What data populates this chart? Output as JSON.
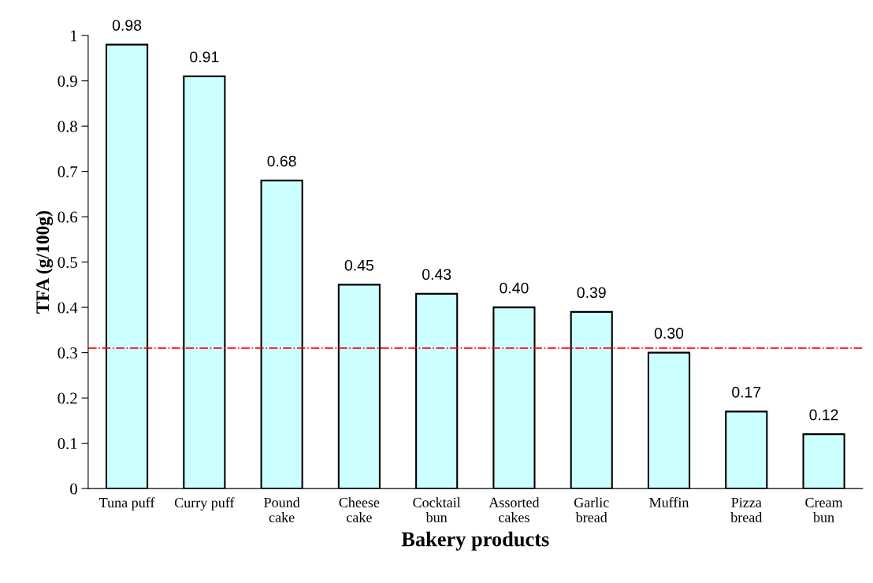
{
  "chart_data": {
    "type": "bar",
    "xlabel": "Bakery products",
    "ylabel": "TFA (g/100g)",
    "categories": [
      "Tuna puff",
      "Curry puff",
      "Pound\ncake",
      "Cheese\ncake",
      "Cocktail\nbun",
      "Assorted\ncakes",
      "Garlic\nbread",
      "Muffin",
      "Pizza\nbread",
      "Cream\nbun"
    ],
    "values": [
      0.98,
      0.91,
      0.68,
      0.45,
      0.43,
      0.4,
      0.39,
      0.3,
      0.17,
      0.12
    ],
    "value_labels": [
      "0.98",
      "0.91",
      "0.68",
      "0.45",
      "0.43",
      "0.40",
      "0.39",
      "0.30",
      "0.17",
      "0.12"
    ],
    "color": "#ccffff",
    "ylim": [
      0,
      1
    ],
    "yticks": [
      0,
      0.1,
      0.2,
      0.3,
      0.4,
      0.5,
      0.6,
      0.7,
      0.8,
      0.9,
      1
    ],
    "ref_lines": [
      {
        "axis": "y",
        "value": 0.31,
        "color": "#ff0000",
        "line_style": "dashdot"
      }
    ],
    "grid": false,
    "legend": false
  }
}
